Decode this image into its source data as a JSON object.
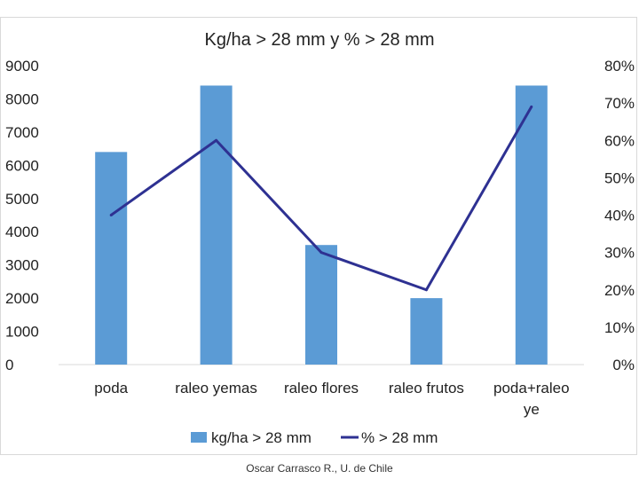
{
  "chart_data": {
    "type": "bar",
    "title": "Kg/ha > 28 mm y % > 28 mm",
    "categories": [
      "poda",
      "raleo yemas",
      "raleo flores",
      "raleo frutos",
      "poda+raleo ye"
    ],
    "series": [
      {
        "name": "kg/ha > 28 mm",
        "type": "bar",
        "axis": "left",
        "color": "#5b9bd5",
        "values": [
          6400,
          8400,
          3600,
          2000,
          8400
        ]
      },
      {
        "name": "% > 28 mm",
        "type": "line",
        "axis": "right",
        "color": "#2e3192",
        "values": [
          0.4,
          0.6,
          0.3,
          0.2,
          0.69
        ]
      }
    ],
    "y_left": {
      "min": 0,
      "max": 9000,
      "ticks": [
        "0",
        "1000",
        "2000",
        "3000",
        "4000",
        "5000",
        "6000",
        "7000",
        "8000",
        "9000"
      ]
    },
    "y_right": {
      "min": 0,
      "max": 0.8,
      "ticks": [
        "0%",
        "10%",
        "20%",
        "30%",
        "40%",
        "50%",
        "60%",
        "70%",
        "80%"
      ]
    },
    "grid": false,
    "legend_position": "bottom"
  },
  "footer": {
    "credit": "Oscar Carrasco R., U. de Chile"
  }
}
